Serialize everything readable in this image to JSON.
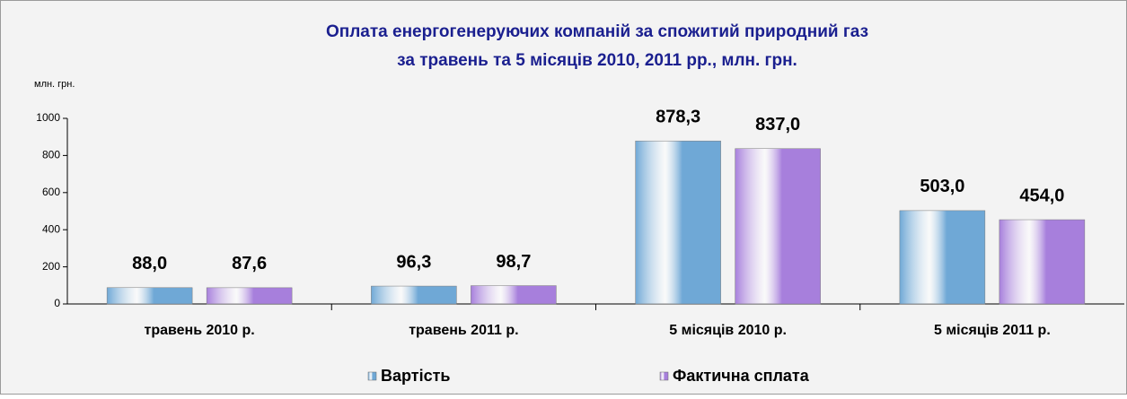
{
  "chart_data": {
    "type": "bar",
    "title": "Оплата енергогенеруючих  компаній за спожитий природний газ",
    "subtitle": "за травень та 5 місяців 2010, 2011 рр.,  млн. грн.",
    "y_label": "млн. грн.",
    "categories": [
      "травень 2010 р.",
      "травень 2011 р.",
      "5 місяців 2010 р.",
      "5 місяців 2011 р."
    ],
    "series": [
      {
        "name": "Вартість",
        "color": "#6fa8d6",
        "values": [
          88.0,
          96.3,
          878.3,
          503.0
        ],
        "value_labels": [
          "88,0",
          "96,3",
          "878,3",
          "503,0"
        ]
      },
      {
        "name": "Фактична сплата",
        "color": "#a77fdc",
        "values": [
          87.6,
          98.7,
          837.0,
          454.0
        ],
        "value_labels": [
          "87,6",
          "98,7",
          "837,0",
          "454,0"
        ]
      }
    ],
    "ylim": [
      0,
      1000
    ],
    "yticks": [
      0,
      200,
      400,
      600,
      800,
      1000
    ],
    "legend": "bottom"
  }
}
